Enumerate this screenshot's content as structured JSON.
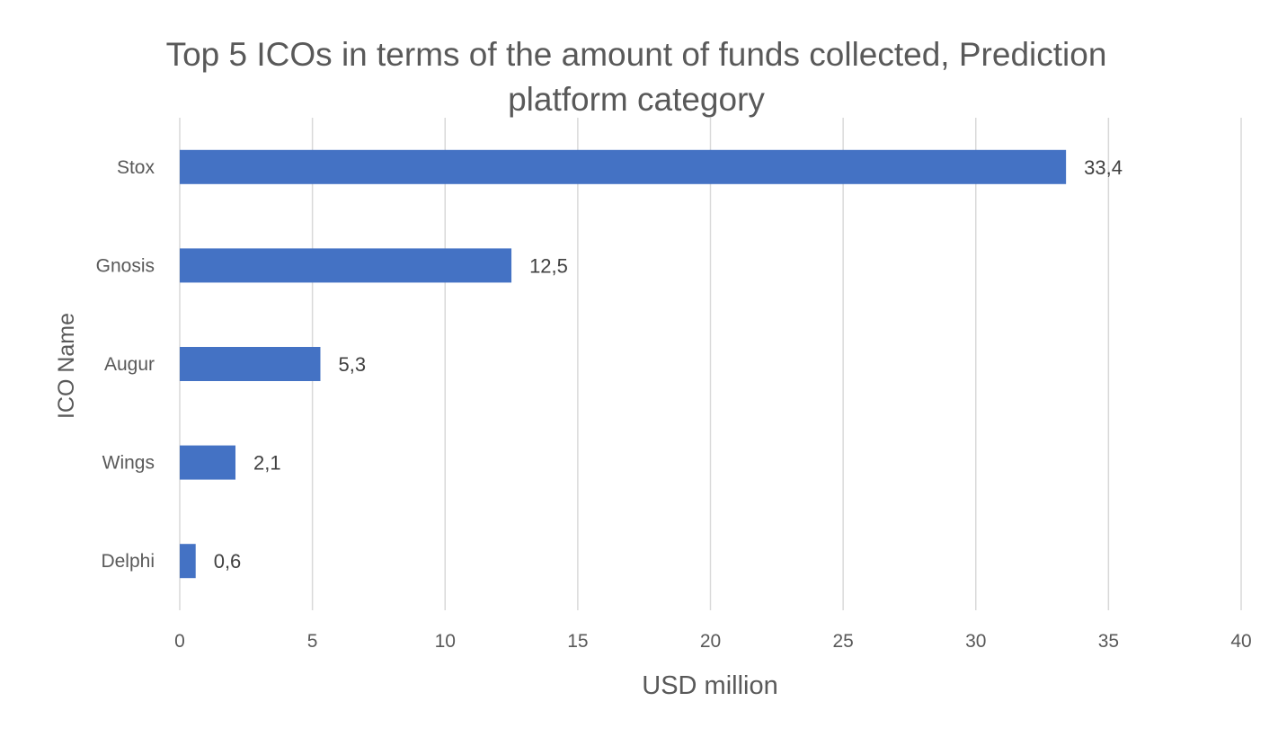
{
  "chart_data": {
    "type": "bar",
    "orientation": "horizontal",
    "title": "Top 5 ICOs in terms of the amount of funds collected, Prediction platform category",
    "xlabel": "USD million",
    "ylabel": "ICO Name",
    "categories": [
      "Stox",
      "Gnosis",
      "Augur",
      "Wings",
      "Delphi"
    ],
    "values": [
      33.4,
      12.5,
      5.3,
      2.1,
      0.6
    ],
    "data_labels": [
      "33,4",
      "12,5",
      "5,3",
      "2,1",
      "0,6"
    ],
    "xlim": [
      0,
      40
    ],
    "x_ticks": [
      0,
      5,
      10,
      15,
      20,
      25,
      30,
      35,
      40
    ],
    "x_tick_labels": [
      "0",
      "5",
      "10",
      "15",
      "20",
      "25",
      "30",
      "35",
      "40"
    ],
    "grid": "vertical",
    "legend": "none",
    "colors": {
      "bar": "#4472C4",
      "grid": "#D9D9D9",
      "text": "#595959",
      "data_label": "#404040"
    }
  }
}
